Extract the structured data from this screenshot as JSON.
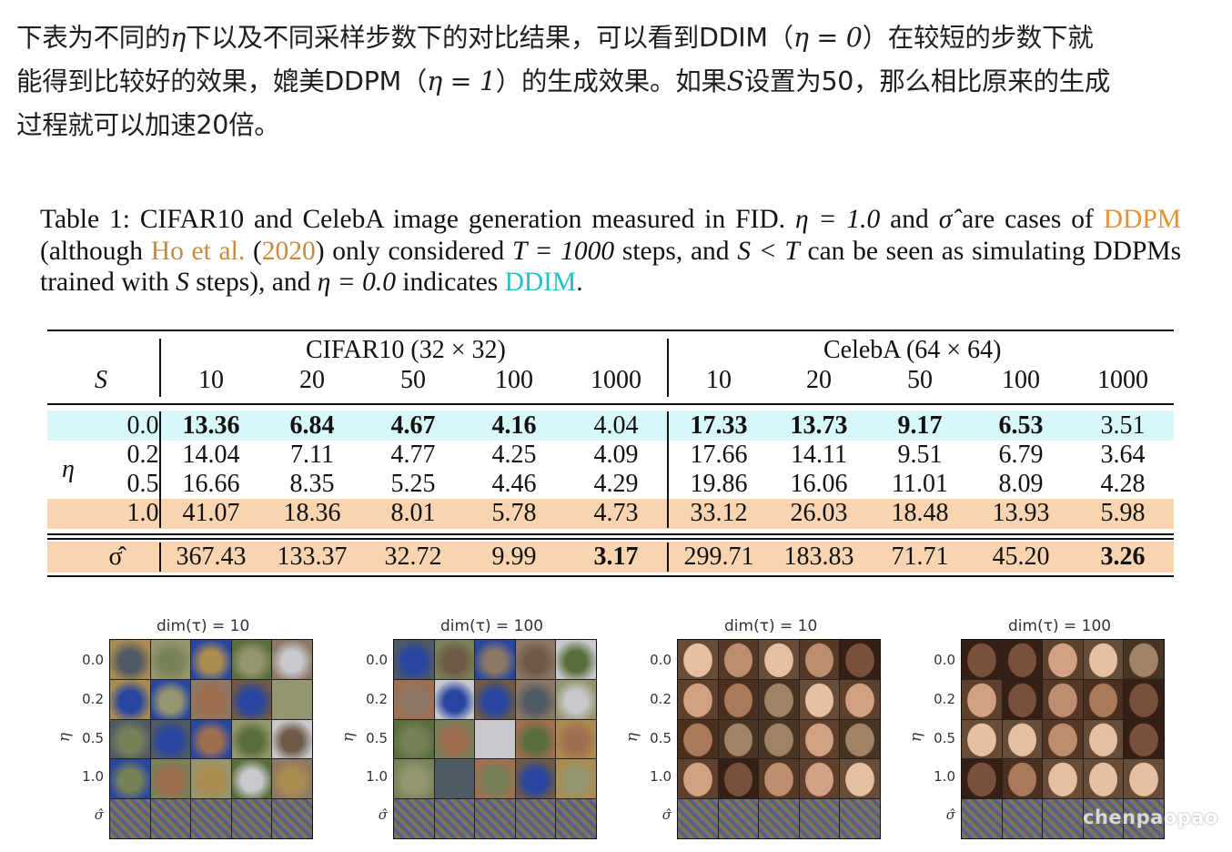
{
  "intro": {
    "l1a": "下表为不同的",
    "eta_sym": "η",
    "l1b": "下以及不同采样步数下的对比结果，可以看到DDIM（",
    "eta_eq0": "η = 0",
    "l1c": "）在较短的步数下就",
    "l2a": "能得到比较好的效果，媲美DDPM（",
    "eta_eq1": "η = 1",
    "l2b": "）的生成效果。如果",
    "s_sym": "S",
    "l2c": "设置为50，那么相比原来的生成",
    "l3": "过程就可以加速20倍。"
  },
  "caption": {
    "p1": "Table 1:  CIFAR10 and CelebA image generation measured in FID.",
    "eta1": "η = 1.0",
    "p2": "and",
    "sigma": "σ̂",
    "p3": "are cases of",
    "ddpm": "DDPM",
    "p4": "(although",
    "ho": "Ho et al.",
    "paren": "(",
    "year": "2020",
    "p5": ") only considered",
    "t_eq": "T = 1000",
    "p6": "steps, and",
    "s_lt_t": "S < T",
    "p7": "can be seen as simulating DDPMs trained with",
    "s": "S",
    "p8": "steps), and",
    "eta0": "η = 0.0",
    "p9": "indicates",
    "ddim": "DDIM",
    "dot": "."
  },
  "colors": {
    "cyan_row": "#d8f7fa",
    "orange_row": "#f8d5b0",
    "ddpm": "#e8912d",
    "ddim": "#1fc3c8"
  },
  "table": {
    "s_label": "S",
    "eta_label": "η",
    "cifar_header": "CIFAR10 (32 × 32)",
    "celeba_header": "CelebA (64 × 64)",
    "steps": [
      "10",
      "20",
      "50",
      "100",
      "1000",
      "10",
      "20",
      "50",
      "100",
      "1000"
    ],
    "rows": [
      {
        "label": "0.0",
        "values": [
          "13.36",
          "6.84",
          "4.67",
          "4.16",
          "4.04",
          "17.33",
          "13.73",
          "9.17",
          "6.53",
          "3.51"
        ],
        "bold": [
          true,
          true,
          true,
          true,
          false,
          true,
          true,
          true,
          true,
          false
        ]
      },
      {
        "label": "0.2",
        "values": [
          "14.04",
          "7.11",
          "4.77",
          "4.25",
          "4.09",
          "17.66",
          "14.11",
          "9.51",
          "6.79",
          "3.64"
        ],
        "bold": [
          false,
          false,
          false,
          false,
          false,
          false,
          false,
          false,
          false,
          false
        ]
      },
      {
        "label": "0.5",
        "values": [
          "16.66",
          "8.35",
          "5.25",
          "4.46",
          "4.29",
          "19.86",
          "16.06",
          "11.01",
          "8.09",
          "4.28"
        ],
        "bold": [
          false,
          false,
          false,
          false,
          false,
          false,
          false,
          false,
          false,
          false
        ]
      },
      {
        "label": "1.0",
        "values": [
          "41.07",
          "18.36",
          "8.01",
          "5.78",
          "4.73",
          "33.12",
          "26.03",
          "18.48",
          "13.93",
          "5.98"
        ],
        "bold": [
          false,
          false,
          false,
          false,
          false,
          false,
          false,
          false,
          false,
          false
        ]
      }
    ],
    "sigma_row": {
      "label": "σ̂",
      "values": [
        "367.43",
        "133.37",
        "32.72",
        "9.99",
        "3.17",
        "299.71",
        "183.83",
        "71.71",
        "45.20",
        "3.26"
      ],
      "bold": [
        false,
        false,
        false,
        false,
        true,
        false,
        false,
        false,
        false,
        true
      ]
    }
  },
  "panels": [
    {
      "title": "dim(τ) = 10",
      "row_labels": [
        "0.0",
        "0.2",
        "0.5",
        "1.0",
        "σ̂"
      ],
      "axis": "η",
      "kind": "cifar"
    },
    {
      "title": "dim(τ) = 100",
      "row_labels": [
        "0.0",
        "0.2",
        "0.5",
        "1.0",
        "σ̂"
      ],
      "axis": "η",
      "kind": "cifar"
    },
    {
      "title": "dim(τ) = 10",
      "row_labels": [
        "0.0",
        "0.2",
        "0.5",
        "1.0",
        "σ̂"
      ],
      "axis": "η",
      "kind": "celeba"
    },
    {
      "title": "dim(τ) = 100",
      "row_labels": [
        "0.0",
        "0.2",
        "0.5",
        "1.0",
        "σ̂"
      ],
      "axis": "η",
      "kind": "celeba"
    }
  ],
  "watermark": "chenpaopao"
}
